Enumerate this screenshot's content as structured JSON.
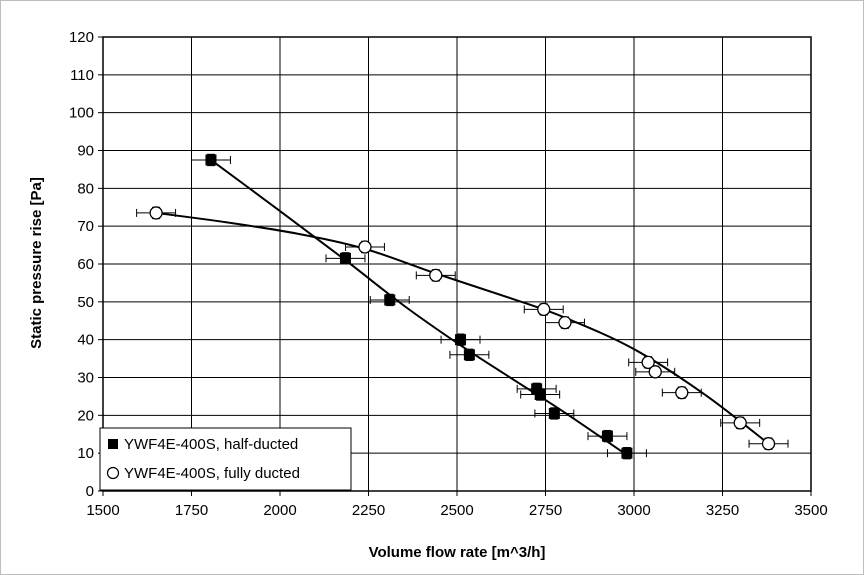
{
  "chart_data": {
    "type": "scatter",
    "title": "",
    "xlabel": "Volume flow rate [m^3/h]",
    "ylabel": "Static pressure rise [Pa]",
    "xlim": [
      1500,
      3500
    ],
    "ylim": [
      0,
      120
    ],
    "xticks": [
      1500,
      1750,
      2000,
      2250,
      2500,
      2750,
      3000,
      3250,
      3500
    ],
    "yticks": [
      0,
      10,
      20,
      30,
      40,
      50,
      60,
      70,
      80,
      90,
      100,
      110,
      120
    ],
    "grid": true,
    "legend_position": "bottom-left",
    "error_bars": "x and y",
    "series": [
      {
        "name": "YWF4E-400S, half-ducted",
        "marker": "filled-square",
        "color": "#000000",
        "points": [
          {
            "x": 1805,
            "y": 87.5,
            "xerr": 55,
            "yerr": 1.5
          },
          {
            "x": 2185,
            "y": 61.5,
            "xerr": 55,
            "yerr": 1.5
          },
          {
            "x": 2310,
            "y": 50.5,
            "xerr": 55,
            "yerr": 1.5
          },
          {
            "x": 2510,
            "y": 40,
            "xerr": 55,
            "yerr": 1.5
          },
          {
            "x": 2535,
            "y": 36,
            "xerr": 55,
            "yerr": 1.5
          },
          {
            "x": 2725,
            "y": 27,
            "xerr": 55,
            "yerr": 1.5
          },
          {
            "x": 2735,
            "y": 25.5,
            "xerr": 55,
            "yerr": 1.5
          },
          {
            "x": 2775,
            "y": 20.5,
            "xerr": 55,
            "yerr": 1.5
          },
          {
            "x": 2925,
            "y": 14.5,
            "xerr": 55,
            "yerr": 1.5
          },
          {
            "x": 2980,
            "y": 10,
            "xerr": 55,
            "yerr": 1.5
          }
        ],
        "trend": [
          [
            1805,
            87.5
          ],
          [
            2000,
            74
          ],
          [
            2185,
            61
          ],
          [
            2350,
            49
          ],
          [
            2510,
            38.5
          ],
          [
            2650,
            30
          ],
          [
            2800,
            21
          ],
          [
            2980,
            9.5
          ]
        ]
      },
      {
        "name": "YWF4E-400S, fully ducted",
        "marker": "open-circle",
        "color": "#000000",
        "points": [
          {
            "x": 1650,
            "y": 73.5,
            "xerr": 55,
            "yerr": 1.5
          },
          {
            "x": 2240,
            "y": 64.5,
            "xerr": 55,
            "yerr": 1.5
          },
          {
            "x": 2440,
            "y": 57,
            "xerr": 55,
            "yerr": 1.5
          },
          {
            "x": 2745,
            "y": 48,
            "xerr": 55,
            "yerr": 1.5
          },
          {
            "x": 2805,
            "y": 44.5,
            "xerr": 55,
            "yerr": 1.5
          },
          {
            "x": 3040,
            "y": 34,
            "xerr": 55,
            "yerr": 1.5
          },
          {
            "x": 3060,
            "y": 31.5,
            "xerr": 55,
            "yerr": 1.5
          },
          {
            "x": 3135,
            "y": 26,
            "xerr": 55,
            "yerr": 1.5
          },
          {
            "x": 3300,
            "y": 18,
            "xerr": 55,
            "yerr": 1.5
          },
          {
            "x": 3380,
            "y": 12.5,
            "xerr": 55,
            "yerr": 1.5
          }
        ],
        "trend": [
          [
            1650,
            73.5
          ],
          [
            1850,
            71
          ],
          [
            2050,
            68
          ],
          [
            2240,
            64
          ],
          [
            2440,
            57.5
          ],
          [
            2650,
            51
          ],
          [
            2800,
            46
          ],
          [
            3000,
            37.5
          ],
          [
            3200,
            25.5
          ],
          [
            3380,
            12.5
          ]
        ]
      }
    ]
  }
}
